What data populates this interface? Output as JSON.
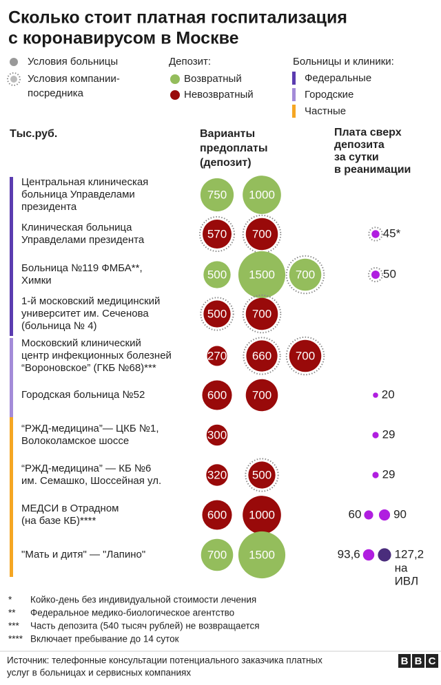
{
  "chart_data": {
    "type": "bubble-table",
    "title": [
      "Сколько стоит платная госпитализация",
      "с коронавирусом в Москве"
    ],
    "sources": [
      {
        "name": [
          "Условия больницы"
        ]
      },
      {
        "name": [
          "Условия компании-",
          "посредника"
        ]
      }
    ],
    "deposit_title": "Депозит:",
    "deposit_kinds": [
      {
        "name": "Возвратный",
        "color": "#94bd5c"
      },
      {
        "name": "Невозвратный",
        "color": "#990a0a"
      }
    ],
    "group_title": "Больницы и клиники:",
    "groups": [
      {
        "name": "Федеральные",
        "color": "#5b3cb0"
      },
      {
        "name": "Городские",
        "color": "#a38bd8"
      },
      {
        "name": "Частные",
        "color": "#f5a623"
      }
    ],
    "unit": "Тыс.руб.",
    "deposit_header": [
      "Варианты",
      "предоплаты",
      "(депозит)"
    ],
    "fee_header": [
      "Плата сверх",
      "депозита",
      "за сутки",
      "в реанимации"
    ],
    "fee_color": "#b01ee0",
    "rows": [
      {
        "name": [
          "Центральная клиническая",
          "больница Управделами",
          "президента"
        ],
        "group": 0,
        "deposits": [
          {
            "value": 750,
            "kind": 0,
            "source": 0
          },
          {
            "value": 1000,
            "kind": 0,
            "source": 0
          }
        ],
        "fees": []
      },
      {
        "name": [
          "Клиническая больница",
          "Управделами президента"
        ],
        "group": 0,
        "deposits": [
          {
            "value": 570,
            "kind": 1,
            "source": 1
          },
          {
            "value": 700,
            "kind": 1,
            "source": 1
          }
        ],
        "fees": [
          {
            "value": 45,
            "label": "45*",
            "source": 1
          }
        ]
      },
      {
        "name": [
          "Больница №119 ФМБА**,",
          "Химки"
        ],
        "group": 0,
        "deposits": [
          {
            "value": 500,
            "kind": 0,
            "source": 0
          },
          {
            "value": 1500,
            "kind": 0,
            "source": 0
          },
          {
            "value": 700,
            "kind": 0,
            "source": 1
          }
        ],
        "fees": [
          {
            "value": 50,
            "source": 1
          }
        ]
      },
      {
        "name": [
          "1-й московский медицинский",
          "университет им. Сеченова",
          "(больница № 4)"
        ],
        "group": 0,
        "deposits": [
          {
            "value": 500,
            "kind": 1,
            "source": 1
          },
          {
            "value": 700,
            "kind": 1,
            "source": 1
          }
        ],
        "fees": []
      },
      {
        "name": [
          "Московский клинический",
          "центр инфекционных болезней",
          "“Вороновское” (ГКБ №68)***"
        ],
        "group": 1,
        "deposits": [
          {
            "value": 270,
            "kind": 1,
            "source": 0
          },
          {
            "value": 660,
            "kind": 1,
            "source": 1
          },
          {
            "value": 700,
            "kind": 1,
            "source": 1
          }
        ],
        "fees": []
      },
      {
        "name": [
          "Городская больница №52"
        ],
        "group": 1,
        "deposits": [
          {
            "value": 600,
            "kind": 1,
            "source": 0
          },
          {
            "value": 700,
            "kind": 1,
            "source": 0
          }
        ],
        "fees": [
          {
            "value": 20,
            "source": 0
          }
        ]
      },
      {
        "name": [
          "“РЖД-медицина”— ЦКБ №1,",
          "Волоколамское шоссе"
        ],
        "group": 2,
        "deposits": [
          {
            "value": 300,
            "kind": 1,
            "source": 0
          }
        ],
        "fees": [
          {
            "value": 29,
            "source": 0
          }
        ]
      },
      {
        "name": [
          "“РЖД-медицина” — КБ №6",
          "им. Семашко, Шоссейная ул."
        ],
        "group": 2,
        "deposits": [
          {
            "value": 320,
            "kind": 1,
            "source": 0
          },
          {
            "value": 500,
            "kind": 1,
            "source": 1
          }
        ],
        "fees": [
          {
            "value": 29,
            "source": 0
          }
        ]
      },
      {
        "name": [
          "МЕДСИ в Отрадном",
          "(на базе КБ)****"
        ],
        "group": 2,
        "deposits": [
          {
            "value": 600,
            "kind": 1,
            "source": 0
          },
          {
            "value": 1000,
            "kind": 1,
            "source": 0
          }
        ],
        "fees": [
          {
            "value": 60,
            "source": 0
          },
          {
            "value": 90,
            "source": 0
          }
        ]
      },
      {
        "name": [
          "\"Мать и дитя\" — \"Лапино\""
        ],
        "group": 2,
        "deposits": [
          {
            "value": 700,
            "kind": 0,
            "source": 0
          },
          {
            "value": 1500,
            "kind": 0,
            "source": 0
          }
        ],
        "fees": [
          {
            "value": 93.6,
            "label": "93,6",
            "source": 0
          },
          {
            "value": 127.2,
            "label": "127,2",
            "source": 0,
            "color": "#4a2d7c",
            "note": [
              "на",
              "ИВЛ"
            ]
          }
        ]
      }
    ],
    "footnotes": [
      {
        "mark": "*",
        "text": "Койко-день без индивидуальной  стоимости лечения"
      },
      {
        "mark": "**",
        "text": "Федеральное медико-биологическое агентство"
      },
      {
        "mark": "***",
        "text": "Часть депозита (540 тысяч рублей) не возвращается"
      },
      {
        "mark": "****",
        "text": "Включает пребывание до 14 суток"
      }
    ],
    "source": [
      "Источник: телефонные консультации потенциального заказчика платных",
      "услуг в больницах и сервисных компаниях"
    ],
    "logo": [
      "B",
      "B",
      "C"
    ]
  }
}
